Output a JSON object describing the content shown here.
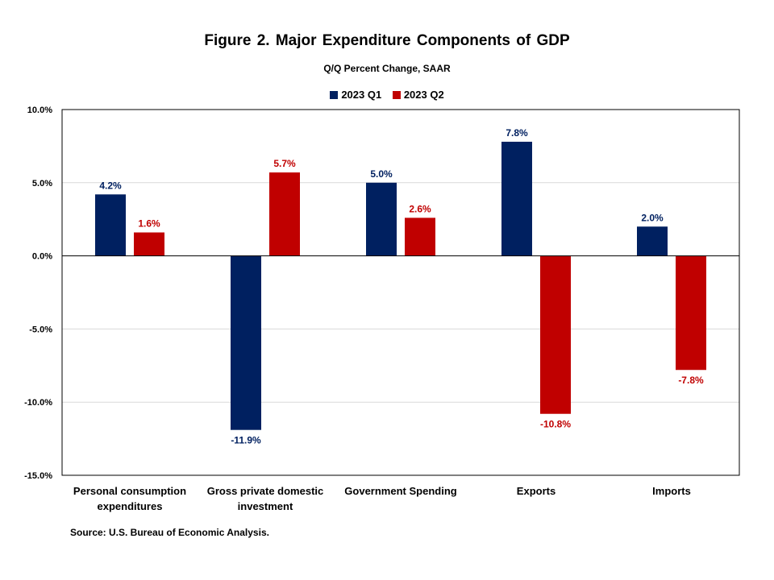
{
  "chart_data": {
    "type": "bar",
    "title": "Figure 2. Major Expenditure Components of GDP",
    "subtitle": "Q/Q Percent Change, SAAR",
    "categories": [
      [
        "Personal consumption",
        "expenditures"
      ],
      [
        "Gross private domestic",
        "investment"
      ],
      [
        "Government Spending"
      ],
      [
        "Exports"
      ],
      [
        "Imports"
      ]
    ],
    "series": [
      {
        "name": "2023 Q1",
        "color": "#002060",
        "values": [
          4.2,
          -11.9,
          5.0,
          7.8,
          2.0
        ],
        "labels": [
          "4.2%",
          "-11.9%",
          "5.0%",
          "7.8%",
          "2.0%"
        ]
      },
      {
        "name": "2023 Q2",
        "color": "#C00000",
        "values": [
          1.6,
          5.7,
          2.6,
          -10.8,
          -7.8
        ],
        "labels": [
          "1.6%",
          "5.7%",
          "2.6%",
          "-10.8%",
          "-7.8%"
        ]
      }
    ],
    "ylim": [
      -15,
      10
    ],
    "yticks": [
      10,
      5,
      0,
      -5,
      -10,
      -15
    ],
    "ytick_labels": [
      "10.0%",
      "5.0%",
      "0.0%",
      "-5.0%",
      "-10.0%",
      "-15.0%"
    ],
    "grid": true,
    "legend_position": "top-center",
    "source": "Source: U.S. Bureau of Economic Analysis."
  }
}
